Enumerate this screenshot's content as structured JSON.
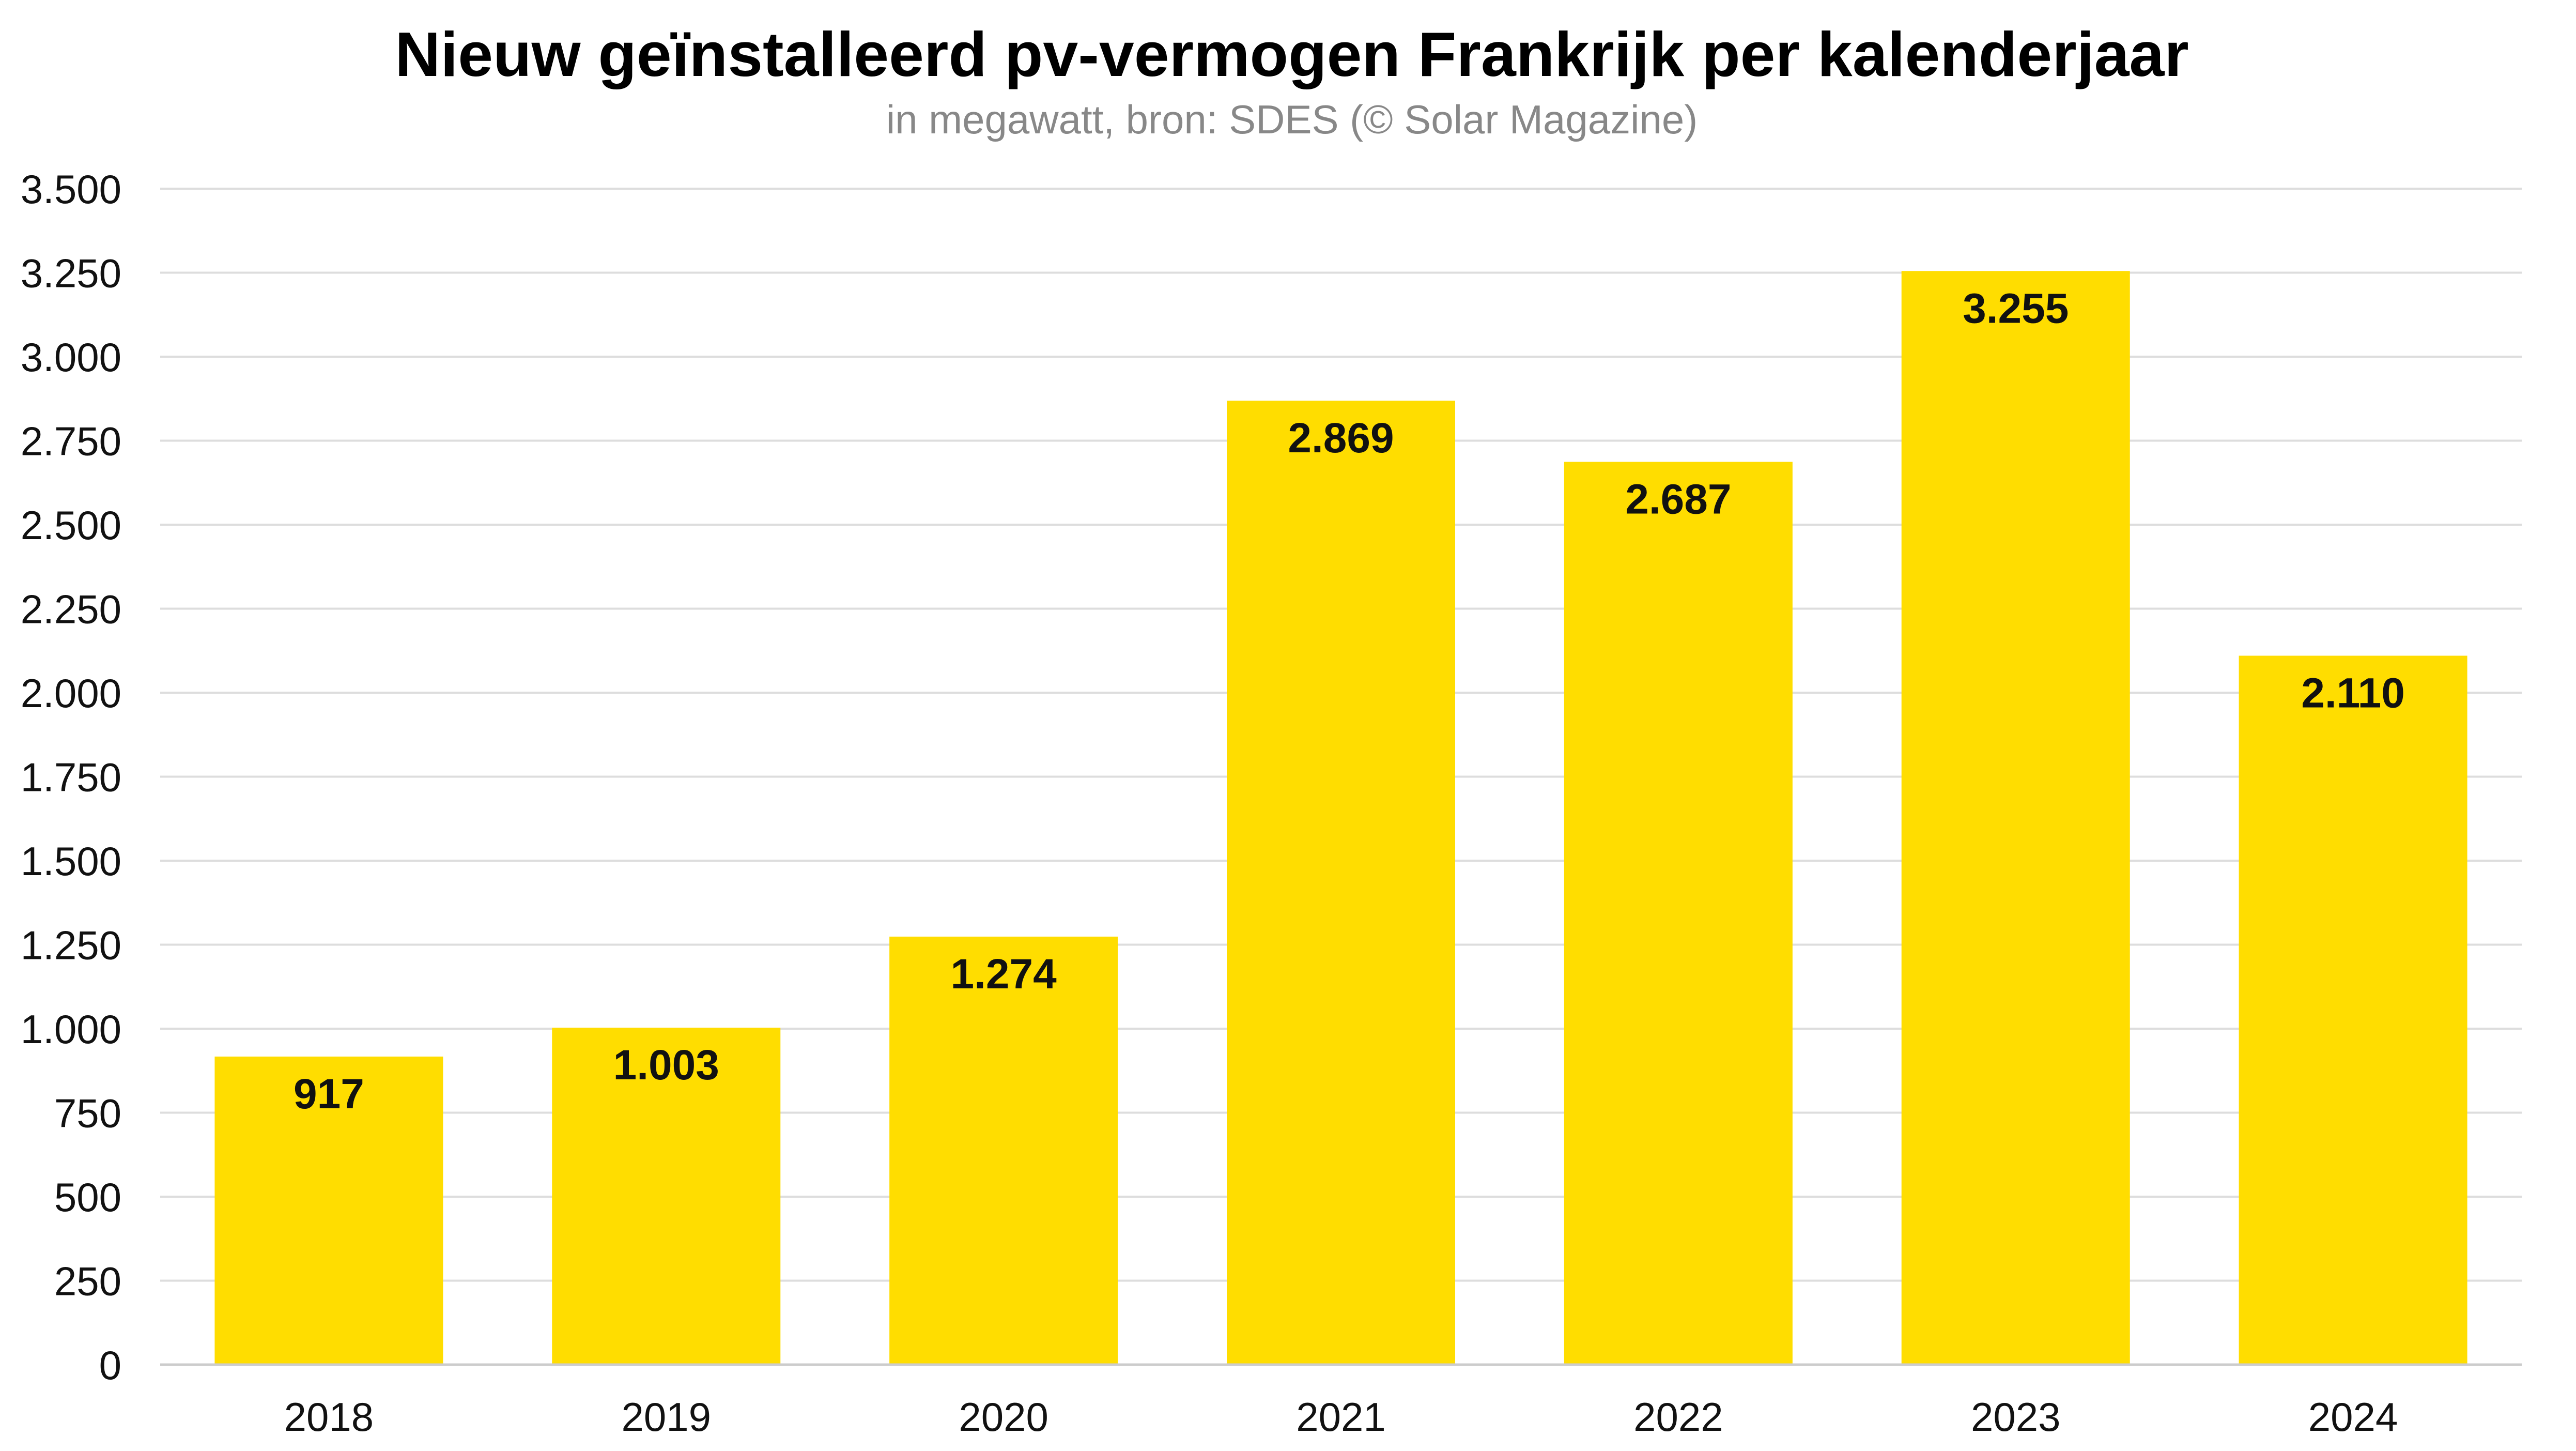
{
  "chart_data": {
    "type": "bar",
    "title": "Nieuw geïnstalleerd pv-vermogen Frankrijk per kalenderjaar",
    "subtitle": "in megawatt, bron: SDES (© Solar Magazine)",
    "categories": [
      "2018",
      "2019",
      "2020",
      "2021",
      "2022",
      "2023",
      "2024"
    ],
    "values": [
      917,
      1003,
      1274,
      2869,
      2687,
      3255,
      2110
    ],
    "data_labels": [
      "917",
      "1.003",
      "1.274",
      "2.869",
      "2.687",
      "3.255",
      "2.110"
    ],
    "ylim": [
      0,
      3500
    ],
    "yticks": [
      0,
      250,
      500,
      750,
      1000,
      1250,
      1500,
      1750,
      2000,
      2250,
      2500,
      2750,
      3000,
      3250,
      3500
    ],
    "ytick_labels": [
      "0",
      "250",
      "500",
      "750",
      "1.000",
      "1.250",
      "1.500",
      "1.750",
      "2.000",
      "2.250",
      "2.500",
      "2.750",
      "3.000",
      "3.250",
      "3.500"
    ],
    "xlabel": "",
    "ylabel": "",
    "grid": true,
    "legend": "none",
    "colors": {
      "bar": "#FFDD00",
      "grid": "#DDDDDD",
      "text": "#111111",
      "subtitle": "#888888"
    }
  }
}
